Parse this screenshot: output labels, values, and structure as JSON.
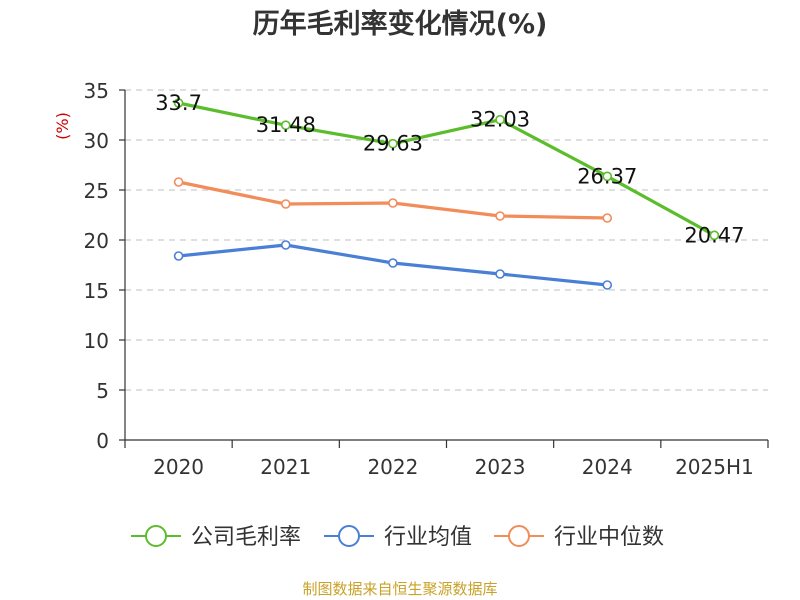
{
  "title": "历年毛利率变化情况(%)",
  "source": "制图数据来自恒生聚源数据库",
  "colors": {
    "company": "#5bbd2b",
    "industry_avg": "#4a7fd6",
    "industry_median": "#f28c5a",
    "grid": "#cccccc",
    "axis": "#333333",
    "ylabel": "#cc0000"
  },
  "chart_data": {
    "type": "line",
    "title": "历年毛利率变化情况(%)",
    "xlabel": "",
    "ylabel": "(%)",
    "categories": [
      "2020",
      "2021",
      "2022",
      "2023",
      "2024",
      "2025H1"
    ],
    "ylim": [
      0,
      35
    ],
    "yticks": [
      0,
      5,
      10,
      15,
      20,
      25,
      30,
      35
    ],
    "grid": true,
    "legend": "bottom",
    "series": [
      {
        "name": "公司毛利率",
        "color": "#5bbd2b",
        "values": [
          33.7,
          31.48,
          29.63,
          32.03,
          26.37,
          20.47
        ],
        "labels": [
          "33.7",
          "31.48",
          "29.63",
          "32.03",
          "26.37",
          "20.47"
        ]
      },
      {
        "name": "行业均值",
        "color": "#4a7fd6",
        "values": [
          18.4,
          19.5,
          17.7,
          16.6,
          15.5,
          null
        ]
      },
      {
        "name": "行业中位数",
        "color": "#f28c5a",
        "values": [
          25.8,
          23.6,
          23.7,
          22.4,
          22.2,
          null
        ]
      }
    ]
  }
}
